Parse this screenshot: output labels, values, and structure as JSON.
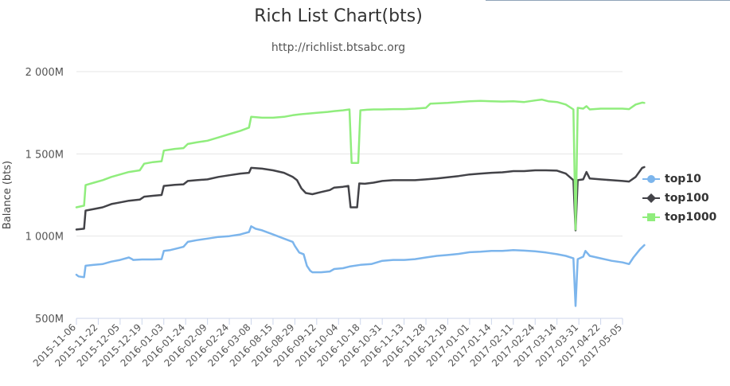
{
  "chart_data": {
    "type": "line",
    "title": "Rich List Chart(bts)",
    "subtitle": "http://richlist.btsabc.org",
    "ylabel": "Balance (bts)",
    "ylim": [
      500,
      2000
    ],
    "y_unit": "M",
    "y_ticks": [
      "500M",
      "1 000M",
      "1 500M",
      "2 000M"
    ],
    "y_tick_values": [
      500,
      1000,
      1500,
      2000
    ],
    "grid": true,
    "legend_position": "right",
    "x_tick_labels": [
      "2015-11-06",
      "2015-11-22",
      "2015-12-05",
      "2015-12-19",
      "2016-01-03",
      "2016-01-24",
      "2016-02-09",
      "2016-02-24",
      "2016-03-08",
      "2016-08-15",
      "2016-08-29",
      "2016-09-12",
      "2016-10-04",
      "2016-10-18",
      "2016-10-31",
      "2016-11-13",
      "2016-11-28",
      "2016-12-19",
      "2017-01-01",
      "2017-01-14",
      "2017-02-11",
      "2017-02-24",
      "2017-03-14",
      "2017-03-31",
      "2017-04-22",
      "2017-05-05"
    ],
    "series": [
      {
        "name": "top10",
        "color": "#7cb5ec",
        "marker": "circle",
        "points": [
          [
            0,
            765
          ],
          [
            0.1,
            755
          ],
          [
            0.35,
            750
          ],
          [
            0.42,
            820
          ],
          [
            0.8,
            825
          ],
          [
            1.2,
            830
          ],
          [
            1.6,
            845
          ],
          [
            2,
            855
          ],
          [
            2.4,
            870
          ],
          [
            2.55,
            860
          ],
          [
            2.6,
            855
          ],
          [
            3,
            858
          ],
          [
            3.5,
            858
          ],
          [
            3.9,
            860
          ],
          [
            4.0,
            910
          ],
          [
            4.3,
            915
          ],
          [
            4.6,
            925
          ],
          [
            4.9,
            935
          ],
          [
            5.1,
            965
          ],
          [
            5.5,
            975
          ],
          [
            6,
            985
          ],
          [
            6.5,
            995
          ],
          [
            7,
            1000
          ],
          [
            7.5,
            1010
          ],
          [
            7.9,
            1025
          ],
          [
            8.0,
            1060
          ],
          [
            8.2,
            1045
          ],
          [
            8.5,
            1035
          ],
          [
            9,
            1010
          ],
          [
            9.5,
            985
          ],
          [
            9.9,
            965
          ],
          [
            10.0,
            940
          ],
          [
            10.2,
            900
          ],
          [
            10.4,
            890
          ],
          [
            10.55,
            820
          ],
          [
            10.7,
            790
          ],
          [
            10.8,
            780
          ],
          [
            11.2,
            780
          ],
          [
            11.6,
            785
          ],
          [
            11.8,
            800
          ],
          [
            12.2,
            805
          ],
          [
            12.5,
            815
          ],
          [
            13,
            825
          ],
          [
            13.5,
            830
          ],
          [
            14,
            850
          ],
          [
            14.5,
            855
          ],
          [
            15,
            855
          ],
          [
            15.5,
            860
          ],
          [
            16,
            870
          ],
          [
            16.5,
            880
          ],
          [
            17,
            885
          ],
          [
            17.5,
            892
          ],
          [
            18,
            902
          ],
          [
            18.5,
            905
          ],
          [
            19,
            910
          ],
          [
            19.5,
            910
          ],
          [
            20,
            915
          ],
          [
            20.5,
            912
          ],
          [
            21,
            908
          ],
          [
            21.5,
            900
          ],
          [
            22,
            890
          ],
          [
            22.4,
            880
          ],
          [
            22.75,
            865
          ],
          [
            22.85,
            575
          ],
          [
            22.95,
            860
          ],
          [
            23.2,
            875
          ],
          [
            23.3,
            910
          ],
          [
            23.5,
            880
          ],
          [
            24,
            865
          ],
          [
            24.5,
            850
          ],
          [
            25,
            840
          ],
          [
            25.3,
            830
          ],
          [
            25.5,
            870
          ],
          [
            25.8,
            920
          ],
          [
            26,
            945
          ]
        ]
      },
      {
        "name": "top100",
        "color": "#434348",
        "marker": "diamond",
        "points": [
          [
            0,
            1040
          ],
          [
            0.35,
            1045
          ],
          [
            0.42,
            1155
          ],
          [
            0.8,
            1165
          ],
          [
            1.2,
            1175
          ],
          [
            1.6,
            1195
          ],
          [
            2,
            1205
          ],
          [
            2.4,
            1215
          ],
          [
            2.9,
            1222
          ],
          [
            3.1,
            1240
          ],
          [
            3.5,
            1245
          ],
          [
            3.9,
            1250
          ],
          [
            4.0,
            1305
          ],
          [
            4.5,
            1312
          ],
          [
            4.9,
            1315
          ],
          [
            5.1,
            1335
          ],
          [
            5.5,
            1340
          ],
          [
            6,
            1345
          ],
          [
            6.5,
            1360
          ],
          [
            7,
            1370
          ],
          [
            7.5,
            1380
          ],
          [
            7.9,
            1385
          ],
          [
            8.0,
            1415
          ],
          [
            8.5,
            1410
          ],
          [
            9,
            1400
          ],
          [
            9.5,
            1385
          ],
          [
            9.9,
            1360
          ],
          [
            10.1,
            1340
          ],
          [
            10.3,
            1290
          ],
          [
            10.5,
            1262
          ],
          [
            10.8,
            1255
          ],
          [
            11.2,
            1268
          ],
          [
            11.6,
            1280
          ],
          [
            11.8,
            1295
          ],
          [
            12.2,
            1300
          ],
          [
            12.45,
            1305
          ],
          [
            12.55,
            1175
          ],
          [
            12.85,
            1175
          ],
          [
            12.95,
            1320
          ],
          [
            13.2,
            1318
          ],
          [
            13.6,
            1325
          ],
          [
            14,
            1335
          ],
          [
            14.5,
            1340
          ],
          [
            15,
            1340
          ],
          [
            15.5,
            1340
          ],
          [
            16,
            1345
          ],
          [
            16.5,
            1350
          ],
          [
            17,
            1358
          ],
          [
            17.5,
            1365
          ],
          [
            18,
            1375
          ],
          [
            18.5,
            1380
          ],
          [
            19,
            1385
          ],
          [
            19.5,
            1388
          ],
          [
            20,
            1395
          ],
          [
            20.5,
            1395
          ],
          [
            21,
            1400
          ],
          [
            21.5,
            1400
          ],
          [
            22,
            1398
          ],
          [
            22.4,
            1380
          ],
          [
            22.75,
            1340
          ],
          [
            22.85,
            1035
          ],
          [
            22.95,
            1340
          ],
          [
            23.2,
            1345
          ],
          [
            23.35,
            1390
          ],
          [
            23.5,
            1350
          ],
          [
            24,
            1345
          ],
          [
            24.5,
            1340
          ],
          [
            25,
            1335
          ],
          [
            25.3,
            1332
          ],
          [
            25.6,
            1360
          ],
          [
            25.9,
            1415
          ],
          [
            26,
            1420
          ]
        ]
      },
      {
        "name": "top1000",
        "color": "#90ed7d",
        "marker": "square",
        "points": [
          [
            0,
            1175
          ],
          [
            0.35,
            1185
          ],
          [
            0.42,
            1310
          ],
          [
            0.8,
            1325
          ],
          [
            1.2,
            1340
          ],
          [
            1.6,
            1360
          ],
          [
            2,
            1375
          ],
          [
            2.4,
            1390
          ],
          [
            2.9,
            1400
          ],
          [
            3.1,
            1440
          ],
          [
            3.5,
            1450
          ],
          [
            3.9,
            1455
          ],
          [
            4.0,
            1520
          ],
          [
            4.5,
            1530
          ],
          [
            4.9,
            1535
          ],
          [
            5.1,
            1560
          ],
          [
            5.5,
            1570
          ],
          [
            6,
            1580
          ],
          [
            6.5,
            1600
          ],
          [
            7,
            1620
          ],
          [
            7.5,
            1640
          ],
          [
            7.9,
            1660
          ],
          [
            8.0,
            1725
          ],
          [
            8.5,
            1720
          ],
          [
            9,
            1720
          ],
          [
            9.5,
            1725
          ],
          [
            9.9,
            1735
          ],
          [
            10.2,
            1740
          ],
          [
            10.6,
            1745
          ],
          [
            11,
            1750
          ],
          [
            11.5,
            1755
          ],
          [
            11.8,
            1760
          ],
          [
            12.2,
            1765
          ],
          [
            12.5,
            1770
          ],
          [
            12.6,
            1445
          ],
          [
            12.9,
            1445
          ],
          [
            13.0,
            1765
          ],
          [
            13.3,
            1768
          ],
          [
            13.6,
            1770
          ],
          [
            14,
            1770
          ],
          [
            14.5,
            1772
          ],
          [
            15,
            1772
          ],
          [
            15.5,
            1775
          ],
          [
            16,
            1780
          ],
          [
            16.2,
            1805
          ],
          [
            16.6,
            1808
          ],
          [
            17,
            1810
          ],
          [
            17.5,
            1815
          ],
          [
            18,
            1820
          ],
          [
            18.5,
            1822
          ],
          [
            19,
            1820
          ],
          [
            19.5,
            1818
          ],
          [
            20,
            1820
          ],
          [
            20.5,
            1815
          ],
          [
            21,
            1825
          ],
          [
            21.3,
            1830
          ],
          [
            21.6,
            1820
          ],
          [
            22,
            1815
          ],
          [
            22.4,
            1800
          ],
          [
            22.75,
            1770
          ],
          [
            22.85,
            1040
          ],
          [
            22.95,
            1780
          ],
          [
            23.2,
            1775
          ],
          [
            23.35,
            1790
          ],
          [
            23.5,
            1770
          ],
          [
            24,
            1775
          ],
          [
            24.5,
            1775
          ],
          [
            25,
            1775
          ],
          [
            25.3,
            1772
          ],
          [
            25.6,
            1800
          ],
          [
            25.9,
            1812
          ],
          [
            26,
            1810
          ]
        ]
      }
    ]
  }
}
